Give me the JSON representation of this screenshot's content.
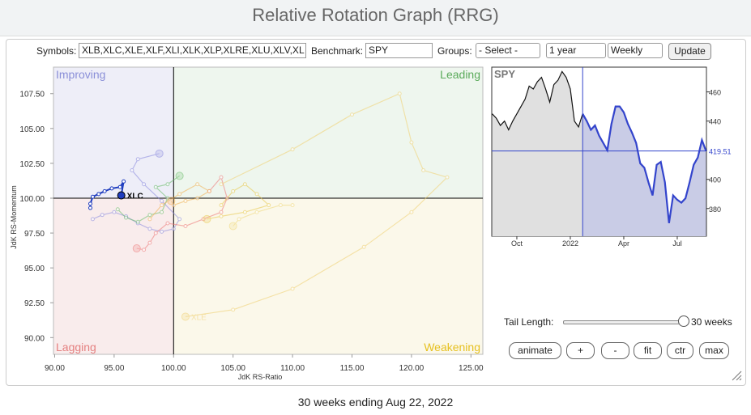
{
  "header": {
    "title": "Relative Rotation Graph (RRG)"
  },
  "controls": {
    "symbols_label": "Symbols:",
    "symbols_value": "XLB,XLC,XLE,XLF,XLI,XLK,XLP,XLRE,XLU,XLV,XL",
    "benchmark_label": "Benchmark:",
    "benchmark_value": "SPY",
    "groups_label": "Groups:",
    "groups_value": "- Select -",
    "period_value": "1 year",
    "interval_value": "Weekly",
    "update_button": "Update"
  },
  "chart_data": [
    {
      "type": "scatter",
      "x_label": "JdK RS-Ratio",
      "y_label": "JdK RS-Momentum",
      "quadrants": {
        "improving": "Improving",
        "leading": "Leading",
        "lagging": "Lagging",
        "weakening": "Weakening"
      },
      "xlim": [
        89.9,
        126.0
      ],
      "ylim": [
        88.8,
        109.4
      ],
      "xticks": [
        {
          "value": 90,
          "label": "90.00"
        },
        {
          "value": 95,
          "label": "95.00"
        },
        {
          "value": 100,
          "label": "100.00"
        },
        {
          "value": 105,
          "label": "105.00"
        },
        {
          "value": 110,
          "label": "110.00"
        },
        {
          "value": 115,
          "label": "115.00"
        },
        {
          "value": 120,
          "label": "120.00"
        },
        {
          "value": 125,
          "label": "125.00"
        }
      ],
      "yticks": [
        {
          "value": 90,
          "label": "90.00"
        },
        {
          "value": 92.5,
          "label": "92.50"
        },
        {
          "value": 95,
          "label": "95.00"
        },
        {
          "value": 97.5,
          "label": "97.50"
        },
        {
          "value": 100,
          "label": "100.00"
        },
        {
          "value": 102.5,
          "label": "102.50"
        },
        {
          "value": 105,
          "label": "105.00"
        },
        {
          "value": 107.5,
          "label": "107.50"
        }
      ],
      "series": [
        {
          "color": "#8888dd",
          "x": [
            93.2,
            94,
            95,
            96,
            97,
            98,
            99,
            100,
            100.5,
            99,
            97.5,
            96.5,
            97,
            98.8
          ],
          "values": [
            98.5,
            98.8,
            99,
            98.7,
            98.2,
            97.8,
            97.6,
            97.8,
            98.5,
            99.8,
            101,
            102,
            102.8,
            103.2
          ]
        },
        {
          "color": "#66bb66",
          "x": [
            95.3,
            96,
            97,
            98,
            99,
            99.5,
            98.5,
            99.5,
            100.5
          ],
          "values": [
            99.2,
            98.6,
            98.3,
            98.8,
            99,
            100,
            100.8,
            101,
            101.6
          ]
        },
        {
          "color": "#ee7777",
          "x": [
            103,
            104,
            104.5,
            104,
            102.5,
            101,
            99.5,
            98.5,
            98,
            97.5,
            96.9
          ],
          "values": [
            100.5,
            101.5,
            100,
            99,
            98.5,
            98,
            98.2,
            97.5,
            96.8,
            96.3,
            96.4
          ]
        },
        {
          "color": "#f0b050",
          "x": [
            98,
            99,
            100.5,
            102,
            103,
            102,
            101,
            100,
            99.8
          ],
          "values": [
            98.5,
            99.5,
            100.3,
            101,
            100.5,
            100,
            99.8,
            99.5,
            99.8
          ]
        },
        {
          "color": "#e8c84a",
          "x": [
            104,
            105,
            106,
            107,
            108,
            106,
            104,
            102.8
          ],
          "values": [
            99.5,
            100.5,
            101,
            100.3,
            99.5,
            99,
            98.7,
            98.5
          ]
        },
        {
          "color": "#f0d878",
          "x": [
            110,
            109,
            107,
            105.5,
            105
          ],
          "values": [
            99.5,
            99.5,
            99,
            98.5,
            98
          ]
        },
        {
          "name": "XLE",
          "color": "#f0d070",
          "x": [
            104,
            110,
            115,
            119,
            120,
            121,
            123,
            120,
            116,
            110,
            105,
            101
          ],
          "values": [
            101,
            103.5,
            106,
            107.5,
            104,
            102,
            101.5,
            99,
            96.5,
            93.5,
            92,
            91.5
          ]
        },
        {
          "name": "XLC",
          "color": "#1f3dbf",
          "x": [
            93,
            93,
            93.2,
            93.7,
            94.2,
            94.8,
            95.5,
            95.8,
            95.6
          ],
          "values": [
            99.3,
            99.6,
            100.1,
            100.3,
            100.5,
            100.7,
            100.8,
            101.2,
            100.2
          ]
        }
      ]
    },
    {
      "type": "line",
      "title": "SPY",
      "color": "#3344cc",
      "categories": [
        null,
        null,
        null,
        null,
        null,
        null,
        "Oct",
        null,
        null,
        null,
        null,
        null,
        null,
        null,
        null,
        null,
        null,
        null,
        null,
        "2022",
        null,
        null,
        null,
        null,
        null,
        null,
        null,
        null,
        null,
        null,
        null,
        null,
        "Apr",
        null,
        null,
        null,
        null,
        null,
        null,
        null,
        null,
        null,
        null,
        null,
        null,
        "Jul",
        null,
        null,
        null,
        null,
        null,
        null,
        null
      ],
      "values": [
        445,
        442,
        437,
        440,
        434,
        440,
        445,
        450,
        455,
        464,
        462,
        467,
        470,
        462,
        453,
        465,
        468,
        474,
        470,
        462,
        440,
        436,
        445,
        440,
        434,
        437,
        430,
        425,
        420,
        438,
        450,
        450,
        446,
        438,
        432,
        425,
        411,
        408,
        398,
        389,
        410,
        412,
        398,
        370,
        389,
        386,
        384,
        387,
        398,
        410,
        415,
        427,
        419.51
      ],
      "ylim": [
        361,
        477
      ],
      "yticks": [
        380,
        400,
        420,
        440,
        460
      ]
    }
  ],
  "tail": {
    "label": "Tail Length:",
    "value_label": "30 weeks"
  },
  "buttons": [
    "animate",
    "+",
    "-",
    "fit",
    "ctr",
    "max"
  ],
  "footer": "30 weeks ending Aug 22, 2022"
}
